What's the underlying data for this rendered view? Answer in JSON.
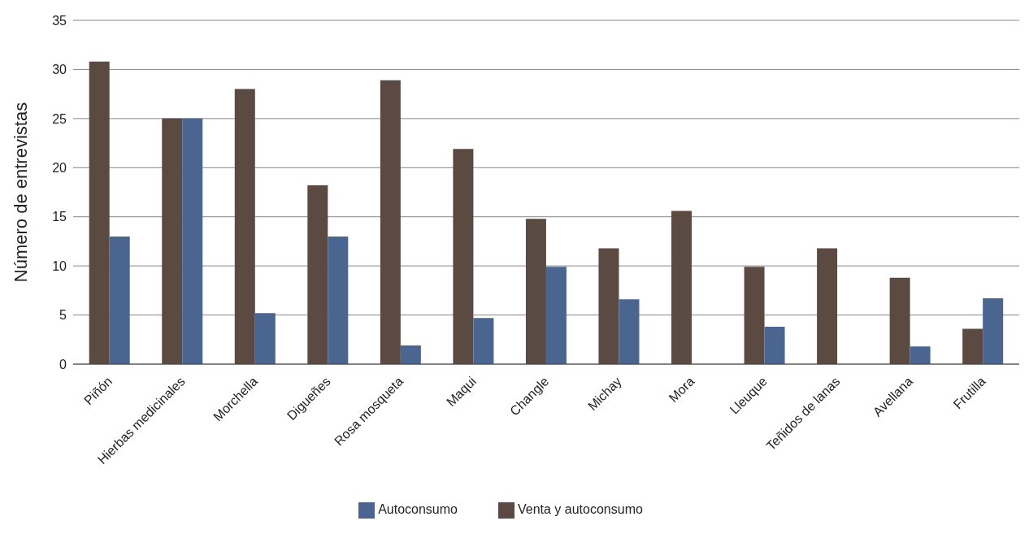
{
  "chart_data": {
    "type": "bar",
    "ylabel": "Número de entrevistas",
    "categories": [
      "Piñón",
      "Hierbas medicinales",
      "Morchella",
      "Digueñes",
      "Rosa mosqueta",
      "Maqui",
      "Changle",
      "Michay",
      "Mora",
      "Lleuque",
      "Teñidos de lanas",
      "Avellana",
      "Frutilla"
    ],
    "series": [
      {
        "name": "Venta y autoconsumo",
        "color": "#5a4a42",
        "values": [
          30.8,
          25,
          28,
          18.2,
          28.9,
          21.9,
          14.8,
          11.8,
          15.6,
          9.9,
          11.8,
          8.8,
          3.6
        ]
      },
      {
        "name": "Autoconsumo",
        "color": "#4a6690",
        "values": [
          13,
          25,
          5.2,
          13,
          1.9,
          4.7,
          9.9,
          6.6,
          0,
          3.8,
          0,
          1.8,
          6.7
        ]
      }
    ],
    "ylim": [
      0,
      35
    ],
    "yticks": [
      0,
      5,
      10,
      15,
      20,
      25,
      30,
      35
    ],
    "grid": "y",
    "legend": "bottom"
  }
}
